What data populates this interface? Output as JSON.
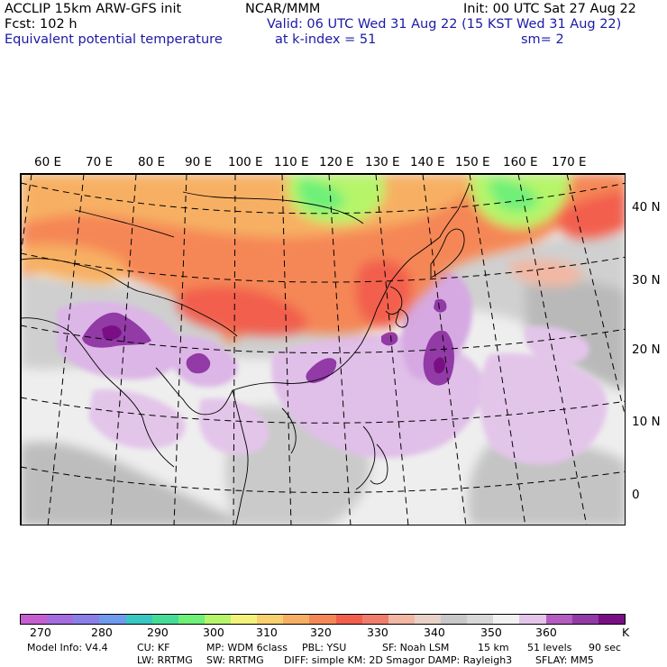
{
  "header": {
    "title": "ACCLIP 15km ARW-GFS init",
    "forecast": "Fcst:  102 h",
    "field_name": "Equivalent potential temperature",
    "center": "NCAR/MMM",
    "valid": "Valid: 06 UTC Wed 31 Aug 22 (15 KST Wed 31 Aug 22)",
    "level": "at k-index =  51",
    "init": "Init: 00 UTC Sat 27 Aug 22",
    "smoothing": "sm= 2"
  },
  "map": {
    "lon_labels": [
      "60 E",
      "70 E",
      "80 E",
      "90 E",
      "100 E",
      "110 E",
      "120 E",
      "130 E",
      "140 E",
      "150 E",
      "160 E",
      "170 E"
    ],
    "lat_labels": [
      "40 N",
      "30 N",
      "20 N",
      "10 N",
      "0"
    ]
  },
  "colorbar": {
    "unit": "K",
    "labels": [
      "270",
      "280",
      "290",
      "300",
      "310",
      "320",
      "330",
      "340",
      "350",
      "360"
    ],
    "colors": [
      "#c55fd1",
      "#a56ce0",
      "#8a7fe8",
      "#6f9bef",
      "#38c7c2",
      "#45dc97",
      "#6ef079",
      "#b6f56b",
      "#f3f37c",
      "#f7d070",
      "#f7b063",
      "#f58756",
      "#f25f4d",
      "#f07c6d",
      "#f2b7a3",
      "#e8d2c8",
      "#c8c8c8",
      "#d8d8d8",
      "#f2f2f2",
      "#e3c5ea",
      "#b45cc0",
      "#923aa6",
      "#7a0f85"
    ]
  },
  "footer": {
    "line1": [
      "Model Info: V4.4",
      "CU: KF",
      "MP: WDM 6class",
      "PBL: YSU",
      "SF: Noah LSM",
      "15 km",
      "51 levels",
      "90 sec"
    ],
    "line2": [
      "LW: RRTMG",
      "SW: RRTMG",
      "DIFF: simple KM: 2D Smagor DAMP: Rayleigh3",
      "SFLAY: MM5"
    ]
  }
}
